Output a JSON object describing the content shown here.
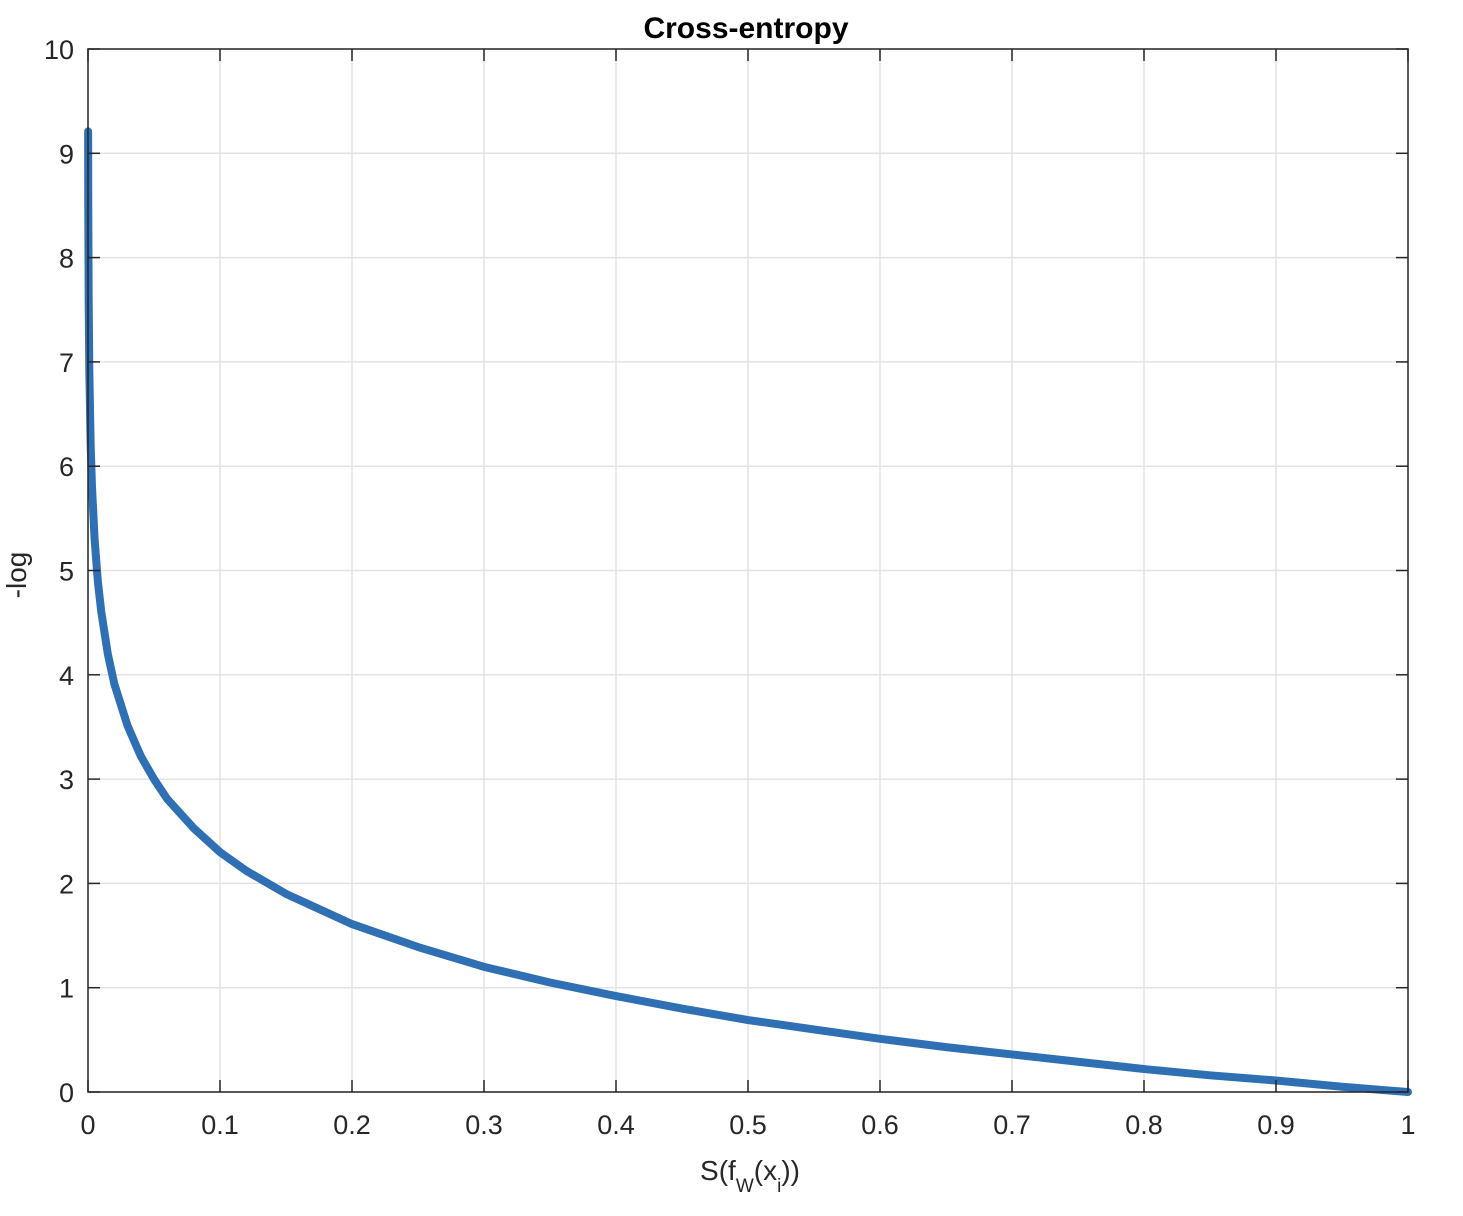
{
  "chart_data": {
    "type": "line",
    "title": "Cross-entropy",
    "xlabel": {
      "main": "S(f",
      "sub1": "W",
      "mid": "(x",
      "sub2": "i",
      "end": "))"
    },
    "ylabel": "-log",
    "xlim": [
      0,
      1
    ],
    "ylim": [
      0,
      10
    ],
    "x_ticks": [
      0,
      0.1,
      0.2,
      0.3,
      0.4,
      0.5,
      0.6,
      0.7,
      0.8,
      0.9,
      1
    ],
    "x_tick_labels": [
      "0",
      "0.1",
      "0.2",
      "0.3",
      "0.4",
      "0.5",
      "0.6",
      "0.7",
      "0.8",
      "0.9",
      "1"
    ],
    "y_ticks": [
      0,
      1,
      2,
      3,
      4,
      5,
      6,
      7,
      8,
      9,
      10
    ],
    "y_tick_labels": [
      "0",
      "1",
      "2",
      "3",
      "4",
      "5",
      "6",
      "7",
      "8",
      "9",
      "10"
    ],
    "grid": true,
    "series": [
      {
        "color": "#2f6fb3",
        "x": [
          0.0001,
          0.0002,
          0.0005,
          0.001,
          0.002,
          0.003,
          0.005,
          0.0075,
          0.01,
          0.015,
          0.02,
          0.03,
          0.04,
          0.05,
          0.06,
          0.08,
          0.1,
          0.12,
          0.15,
          0.2,
          0.25,
          0.3,
          0.35,
          0.4,
          0.45,
          0.5,
          0.55,
          0.6,
          0.65,
          0.7,
          0.75,
          0.8,
          0.85,
          0.9,
          0.95,
          1.0
        ],
        "y": [
          9.21,
          8.52,
          7.6,
          6.91,
          6.21,
          5.81,
          5.3,
          4.89,
          4.61,
          4.2,
          3.91,
          3.51,
          3.22,
          3.0,
          2.81,
          2.53,
          2.3,
          2.12,
          1.9,
          1.61,
          1.39,
          1.2,
          1.05,
          0.92,
          0.8,
          0.69,
          0.6,
          0.51,
          0.43,
          0.36,
          0.29,
          0.22,
          0.16,
          0.11,
          0.05,
          0.0
        ]
      }
    ]
  }
}
